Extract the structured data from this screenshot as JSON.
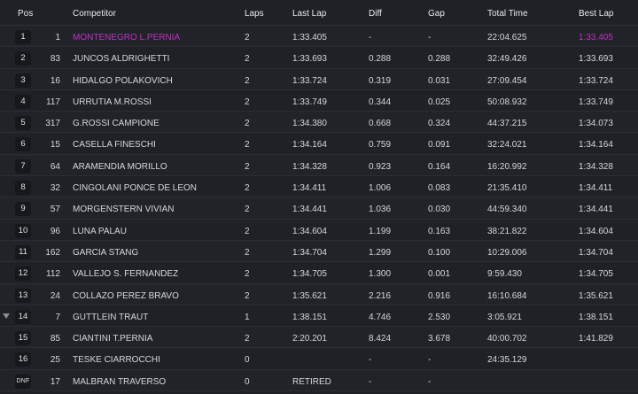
{
  "header": {
    "pos": "Pos",
    "competitor": "Competitor",
    "laps": "Laps",
    "last_lap": "Last Lap",
    "diff": "Diff",
    "gap": "Gap",
    "total_time": "Total Time",
    "best_lap": "Best Lap"
  },
  "rows": [
    {
      "pos": "1",
      "num": "1",
      "competitor": "MONTENEGRO L.PERNIA",
      "laps": "2",
      "last_lap": "1:33.405",
      "diff": "-",
      "gap": "-",
      "total_time": "22:04.625",
      "best_lap": "1:33.405"
    },
    {
      "pos": "2",
      "num": "83",
      "competitor": "JUNCOS ALDRIGHETTI",
      "laps": "2",
      "last_lap": "1:33.693",
      "diff": "0.288",
      "gap": "0.288",
      "total_time": "32:49.426",
      "best_lap": "1:33.693"
    },
    {
      "pos": "3",
      "num": "16",
      "competitor": "HIDALGO POLAKOVICH",
      "laps": "2",
      "last_lap": "1:33.724",
      "diff": "0.319",
      "gap": "0.031",
      "total_time": "27:09.454",
      "best_lap": "1:33.724"
    },
    {
      "pos": "4",
      "num": "117",
      "competitor": "URRUTIA M.ROSSI",
      "laps": "2",
      "last_lap": "1:33.749",
      "diff": "0.344",
      "gap": "0.025",
      "total_time": "50:08.932",
      "best_lap": "1:33.749"
    },
    {
      "pos": "5",
      "num": "317",
      "competitor": "G.ROSSI CAMPIONE",
      "laps": "2",
      "last_lap": "1:34.380",
      "diff": "0.668",
      "gap": "0.324",
      "total_time": "44:37.215",
      "best_lap": "1:34.073"
    },
    {
      "pos": "6",
      "num": "15",
      "competitor": "CASELLA FINESCHI",
      "laps": "2",
      "last_lap": "1:34.164",
      "diff": "0.759",
      "gap": "0.091",
      "total_time": "32:24.021",
      "best_lap": "1:34.164"
    },
    {
      "pos": "7",
      "num": "64",
      "competitor": "ARAMENDIA MORILLO",
      "laps": "2",
      "last_lap": "1:34.328",
      "diff": "0.923",
      "gap": "0.164",
      "total_time": "16:20.992",
      "best_lap": "1:34.328"
    },
    {
      "pos": "8",
      "num": "32",
      "competitor": "CINGOLANI PONCE DE LEON",
      "laps": "2",
      "last_lap": "1:34.411",
      "diff": "1.006",
      "gap": "0.083",
      "total_time": "21:35.410",
      "best_lap": "1:34.411"
    },
    {
      "pos": "9",
      "num": "57",
      "competitor": "MORGENSTERN VIVIAN",
      "laps": "2",
      "last_lap": "1:34.441",
      "diff": "1.036",
      "gap": "0.030",
      "total_time": "44:59.340",
      "best_lap": "1:34.441"
    },
    {
      "pos": "10",
      "num": "96",
      "competitor": "LUNA PALAU",
      "laps": "2",
      "last_lap": "1:34.604",
      "diff": "1.199",
      "gap": "0.163",
      "total_time": "38:21.822",
      "best_lap": "1:34.604"
    },
    {
      "pos": "11",
      "num": "162",
      "competitor": "GARCIA STANG",
      "laps": "2",
      "last_lap": "1:34.704",
      "diff": "1.299",
      "gap": "0.100",
      "total_time": "10:29.006",
      "best_lap": "1:34.704"
    },
    {
      "pos": "12",
      "num": "112",
      "competitor": "VALLEJO S. FERNANDEZ",
      "laps": "2",
      "last_lap": "1:34.705",
      "diff": "1.300",
      "gap": "0.001",
      "total_time": "9:59.430",
      "best_lap": "1:34.705"
    },
    {
      "pos": "13",
      "num": "24",
      "competitor": "COLLAZO PEREZ BRAVO",
      "laps": "2",
      "last_lap": "1:35.621",
      "diff": "2.216",
      "gap": "0.916",
      "total_time": "16:10.684",
      "best_lap": "1:35.621"
    },
    {
      "pos": "14",
      "num": "7",
      "competitor": "GUTTLEIN TRAUT",
      "laps": "1",
      "last_lap": "1:38.151",
      "diff": "4.746",
      "gap": "2.530",
      "total_time": "3:05.921",
      "best_lap": "1:38.151"
    },
    {
      "pos": "15",
      "num": "85",
      "competitor": "CIANTINI T.PERNIA",
      "laps": "2",
      "last_lap": "2:20.201",
      "diff": "8.424",
      "gap": "3.678",
      "total_time": "40:00.702",
      "best_lap": "1:41.829"
    },
    {
      "pos": "16",
      "num": "25",
      "competitor": "TESKE CIARROCCHI",
      "laps": "0",
      "last_lap": "",
      "diff": "-",
      "gap": "-",
      "total_time": "24:35.129",
      "best_lap": ""
    },
    {
      "pos": "DNF",
      "num": "17",
      "competitor": "MALBRAN TRAVERSO",
      "laps": "0",
      "last_lap": "RETIRED",
      "diff": "-",
      "gap": "-",
      "total_time": "",
      "best_lap": ""
    }
  ],
  "colors": {
    "background": "#1e2125",
    "leader_highlight": "#c92cd0",
    "row_border": "#2b2f34",
    "badge": "#16181b"
  },
  "icons": {
    "row_14_indicator": "triangle-down-icon"
  }
}
